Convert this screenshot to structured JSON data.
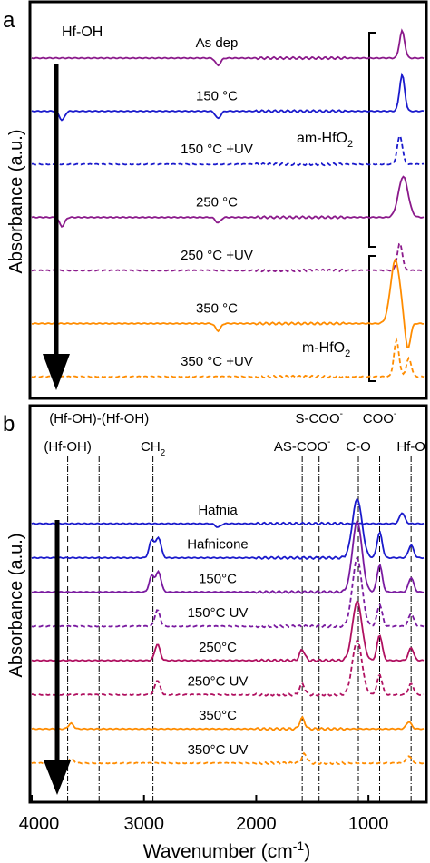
{
  "figure": {
    "shared_xlabel": "Wavenumber (cm",
    "shared_xlabel_sup": "-1",
    "shared_xlabel_end": ")"
  },
  "chart_data": [
    {
      "panel": "a",
      "type": "line",
      "ylabel": "Absorbance (a.u.)",
      "xlim": [
        4000,
        500
      ],
      "y_units": "arbitrary, traces vertically offset",
      "annotations": {
        "hf_oh": "Hf-OH",
        "am_hfo2": "am-HfO",
        "m_hfo2": "m-HfO",
        "subscript": "2"
      },
      "series": [
        {
          "name": "As dep",
          "color": "#8b1a8b",
          "dash": false,
          "offset": 0,
          "peaks": [
            [
              2340,
              -8
            ],
            [
              700,
              30
            ]
          ]
        },
        {
          "name": "150 °C",
          "color": "#1a1acc",
          "dash": false,
          "offset": 1,
          "peaks": [
            [
              3730,
              -10
            ],
            [
              2340,
              -8
            ],
            [
              700,
              40
            ]
          ]
        },
        {
          "name": "150 °C +UV",
          "color": "#1a1acc",
          "dash": true,
          "offset": 2,
          "peaks": [
            [
              720,
              32
            ]
          ]
        },
        {
          "name": "250 °C",
          "color": "#8b1a8b",
          "dash": false,
          "offset": 3,
          "peaks": [
            [
              3730,
              -10
            ],
            [
              2340,
              -6
            ],
            [
              690,
              45
            ]
          ]
        },
        {
          "name": "250 °C +UV",
          "color": "#8b1a8b",
          "dash": true,
          "offset": 4,
          "peaks": [
            [
              720,
              30
            ]
          ]
        },
        {
          "name": "350 °C",
          "color": "#ff8c00",
          "dash": false,
          "offset": 5,
          "peaks": [
            [
              2340,
              -8
            ],
            [
              760,
              70
            ],
            [
              650,
              -30
            ]
          ]
        },
        {
          "name": "350 °C +UV",
          "color": "#ff8c00",
          "dash": true,
          "offset": 6,
          "peaks": [
            [
              750,
              40
            ],
            [
              640,
              20
            ]
          ]
        }
      ]
    },
    {
      "panel": "b",
      "type": "line",
      "ylabel": "Absorbance (a.u.)",
      "xlim": [
        4000,
        500
      ],
      "xticks": [
        4000,
        3000,
        2000,
        1000
      ],
      "y_units": "arbitrary, traces vertically offset",
      "reference_lines": [
        {
          "label": "(Hf-OH)",
          "x": 3680
        },
        {
          "label": "(Hf-OH)-(Hf-OH)",
          "x": 3400
        },
        {
          "label": "CH",
          "sub": "2",
          "x": 2920
        },
        {
          "label": "AS-COO",
          "sup": "-",
          "x": 1590
        },
        {
          "label": "S-COO",
          "sup": "-",
          "x": 1440
        },
        {
          "label": "C-O",
          "x": 1090
        },
        {
          "label": "COO",
          "sup": "-",
          "x": 900
        },
        {
          "label": "Hf-O",
          "x": 620
        }
      ],
      "series": [
        {
          "name": "Hafnia",
          "color": "#1a1acc",
          "dash": false,
          "offset": 0,
          "peaks": [
            [
              700,
              12
            ],
            [
              2340,
              -4
            ]
          ]
        },
        {
          "name": "Hafnicone",
          "color": "#1a1acc",
          "dash": false,
          "offset": 1,
          "peaks": [
            [
              2930,
              20
            ],
            [
              2870,
              22
            ],
            [
              1100,
              65
            ],
            [
              900,
              28
            ],
            [
              620,
              14
            ]
          ]
        },
        {
          "name": "150°C",
          "color": "#7a1aa0",
          "dash": false,
          "offset": 2,
          "peaks": [
            [
              2930,
              18
            ],
            [
              2870,
              22
            ],
            [
              1100,
              78
            ],
            [
              900,
              30
            ],
            [
              620,
              16
            ]
          ]
        },
        {
          "name": "150°C UV",
          "color": "#7a1aa0",
          "dash": true,
          "offset": 3,
          "peaks": [
            [
              2880,
              18
            ],
            [
              1100,
              75
            ],
            [
              900,
              24
            ],
            [
              620,
              14
            ]
          ]
        },
        {
          "name": "250°C",
          "color": "#b01060",
          "dash": false,
          "offset": 4,
          "peaks": [
            [
              2880,
              18
            ],
            [
              1590,
              12
            ],
            [
              1100,
              65
            ],
            [
              900,
              28
            ],
            [
              620,
              14
            ]
          ]
        },
        {
          "name": "250°C UV",
          "color": "#b01060",
          "dash": true,
          "offset": 5,
          "peaks": [
            [
              2880,
              16
            ],
            [
              1590,
              12
            ],
            [
              1100,
              60
            ],
            [
              900,
              22
            ],
            [
              620,
              12
            ]
          ]
        },
        {
          "name": "350°C",
          "color": "#ff8c00",
          "dash": false,
          "offset": 6,
          "peaks": [
            [
              3650,
              6
            ],
            [
              1590,
              12
            ],
            [
              640,
              8
            ]
          ]
        },
        {
          "name": "350°C UV",
          "color": "#ff8c00",
          "dash": true,
          "offset": 7,
          "peaks": [
            [
              3650,
              5
            ],
            [
              1570,
              10
            ],
            [
              640,
              8
            ]
          ]
        }
      ]
    }
  ]
}
